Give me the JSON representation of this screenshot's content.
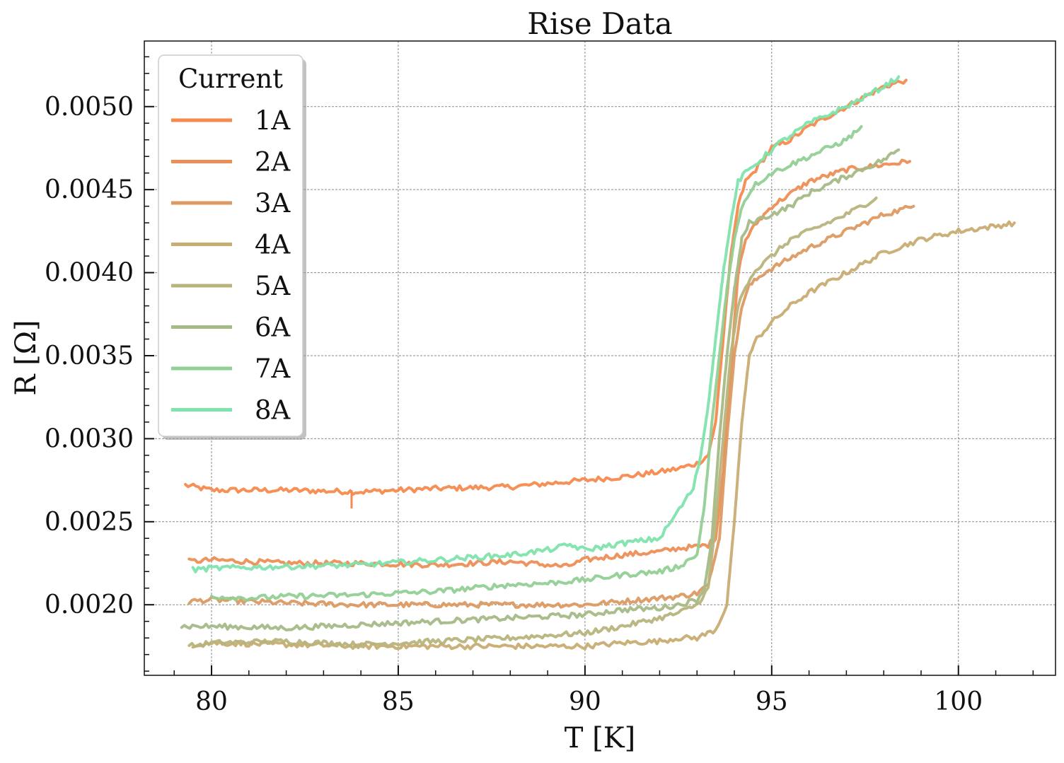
{
  "chart_data": {
    "type": "line",
    "title": "Rise Data",
    "xlabel": "T [K]",
    "ylabel": "R [Ω]",
    "xlim": [
      78.2,
      102.6
    ],
    "ylim": [
      0.001575,
      0.005395
    ],
    "xticks": [
      80,
      85,
      90,
      95,
      100
    ],
    "xtick_labels": [
      "80",
      "85",
      "90",
      "95",
      "100"
    ],
    "yticks": [
      0.002,
      0.0025,
      0.003,
      0.0035,
      0.004,
      0.0045,
      0.005
    ],
    "ytick_labels": [
      "0.0020",
      "0.0025",
      "0.0030",
      "0.0035",
      "0.0040",
      "0.0045",
      "0.0050"
    ],
    "grid": true,
    "legend": {
      "title": "Current",
      "placement": "top-left"
    },
    "series": [
      {
        "name": "1A",
        "color": "#f58a4e",
        "x": [
          79.3,
          80,
          82,
          84,
          86,
          88,
          90,
          91,
          92,
          92.5,
          93,
          93.3,
          93.5,
          93.7,
          93.9,
          94.1,
          94.3,
          94.5,
          95,
          95.5,
          96,
          97,
          98,
          98.6
        ],
        "y": [
          0.00272,
          0.00269,
          0.00269,
          0.00268,
          0.0027,
          0.00271,
          0.00275,
          0.00277,
          0.0028,
          0.00282,
          0.00285,
          0.0029,
          0.0031,
          0.0036,
          0.0041,
          0.0044,
          0.00455,
          0.0046,
          0.00475,
          0.0048,
          0.00488,
          0.005,
          0.00512,
          0.00516
        ]
      },
      {
        "name": "2A",
        "color": "#ec8e56",
        "x": [
          79.4,
          80,
          82,
          84,
          86,
          88,
          89.5,
          90,
          91,
          92,
          92.5,
          93,
          93.3,
          93.5,
          93.7,
          93.9,
          94.1,
          94.3,
          94.6,
          95,
          96,
          97,
          98,
          98.7
        ],
        "y": [
          0.00226,
          0.00227,
          0.00225,
          0.00225,
          0.00224,
          0.00226,
          0.00223,
          0.00227,
          0.0023,
          0.00232,
          0.00234,
          0.00235,
          0.00236,
          0.0024,
          0.0028,
          0.0034,
          0.004,
          0.0042,
          0.0043,
          0.0044,
          0.00455,
          0.00462,
          0.00465,
          0.00467
        ]
      },
      {
        "name": "3A",
        "color": "#dc9a62",
        "x": [
          79.4,
          80,
          82,
          84,
          86,
          88,
          90,
          91,
          92,
          92.5,
          93,
          93.3,
          93.6,
          93.8,
          94,
          94.2,
          94.4,
          94.8,
          95.2,
          96,
          97,
          98,
          98.8
        ],
        "y": [
          0.00202,
          0.00203,
          0.00201,
          0.002,
          0.002,
          0.002,
          0.002,
          0.00202,
          0.00204,
          0.00205,
          0.00207,
          0.00212,
          0.0024,
          0.003,
          0.0035,
          0.0038,
          0.00392,
          0.004,
          0.00405,
          0.00415,
          0.00425,
          0.00435,
          0.0044
        ]
      },
      {
        "name": "4A",
        "color": "#c8ad72",
        "x": [
          79.5,
          80,
          82,
          84,
          86,
          88,
          90,
          91,
          92,
          92.5,
          93,
          93.5,
          93.8,
          94,
          94.2,
          94.4,
          94.6,
          95,
          95.5,
          96,
          97,
          98,
          99,
          100,
          101,
          101.5
        ],
        "y": [
          0.00176,
          0.00177,
          0.00176,
          0.00175,
          0.00175,
          0.00175,
          0.00175,
          0.00177,
          0.00178,
          0.0018,
          0.0018,
          0.00185,
          0.002,
          0.0025,
          0.0031,
          0.0035,
          0.0036,
          0.0037,
          0.0038,
          0.00388,
          0.004,
          0.00412,
          0.0042,
          0.00425,
          0.00428,
          0.0043
        ]
      },
      {
        "name": "5A",
        "color": "#b8b47c",
        "x": [
          79.4,
          80,
          82,
          84,
          86,
          88,
          90,
          91,
          92,
          92.5,
          93,
          93.3,
          93.5,
          93.7,
          93.9,
          94.1,
          94.3,
          94.5,
          95,
          95.5,
          96,
          97,
          97.8
        ],
        "y": [
          0.00175,
          0.00177,
          0.00178,
          0.00176,
          0.00178,
          0.0018,
          0.00183,
          0.00187,
          0.00192,
          0.00195,
          0.002,
          0.0021,
          0.0025,
          0.003,
          0.0035,
          0.0038,
          0.00392,
          0.004,
          0.0041,
          0.0042,
          0.00425,
          0.00435,
          0.00445
        ]
      },
      {
        "name": "6A",
        "color": "#a5bb87",
        "x": [
          79.2,
          80,
          82,
          84,
          86,
          88,
          90,
          91,
          92,
          92.5,
          93,
          93.2,
          93.4,
          93.6,
          93.8,
          94,
          94.2,
          94.4,
          95,
          95.5,
          96,
          97,
          98,
          98.4
        ],
        "y": [
          0.00187,
          0.00187,
          0.00186,
          0.00188,
          0.0019,
          0.00192,
          0.00194,
          0.00197,
          0.00198,
          0.002,
          0.00203,
          0.0021,
          0.0024,
          0.003,
          0.0035,
          0.0039,
          0.0042,
          0.0043,
          0.00435,
          0.0044,
          0.00448,
          0.00458,
          0.00468,
          0.00474
        ]
      },
      {
        "name": "7A",
        "color": "#92cf94",
        "x": [
          80,
          81,
          82,
          84,
          86,
          88,
          89,
          90,
          91,
          92,
          92.5,
          93,
          93.2,
          93.4,
          93.6,
          93.8,
          94,
          94.2,
          94.5,
          95,
          95.5,
          96,
          96.5,
          97,
          97.4
        ],
        "y": [
          0.00205,
          0.00204,
          0.00205,
          0.00206,
          0.00208,
          0.00212,
          0.00213,
          0.00215,
          0.00218,
          0.0022,
          0.00223,
          0.0023,
          0.0026,
          0.0031,
          0.0035,
          0.0039,
          0.0042,
          0.0044,
          0.00452,
          0.0046,
          0.00465,
          0.0047,
          0.00475,
          0.0048,
          0.00488
        ]
      },
      {
        "name": "8A",
        "color": "#7fe3ac",
        "x": [
          79.5,
          80,
          82,
          84,
          86,
          88,
          89,
          89.6,
          90,
          91,
          92,
          92.3,
          92.6,
          92.9,
          93.1,
          93.3,
          93.5,
          93.7,
          93.9,
          94.1,
          94.3,
          94.7,
          95.2,
          96,
          97,
          98,
          98.4
        ],
        "y": [
          0.00221,
          0.00222,
          0.00223,
          0.00224,
          0.00227,
          0.0023,
          0.00233,
          0.00236,
          0.00233,
          0.00237,
          0.0024,
          0.0025,
          0.0026,
          0.0027,
          0.0029,
          0.0032,
          0.0036,
          0.004,
          0.0043,
          0.00455,
          0.0046,
          0.00468,
          0.00478,
          0.0049,
          0.005,
          0.00512,
          0.00518
        ]
      }
    ]
  }
}
